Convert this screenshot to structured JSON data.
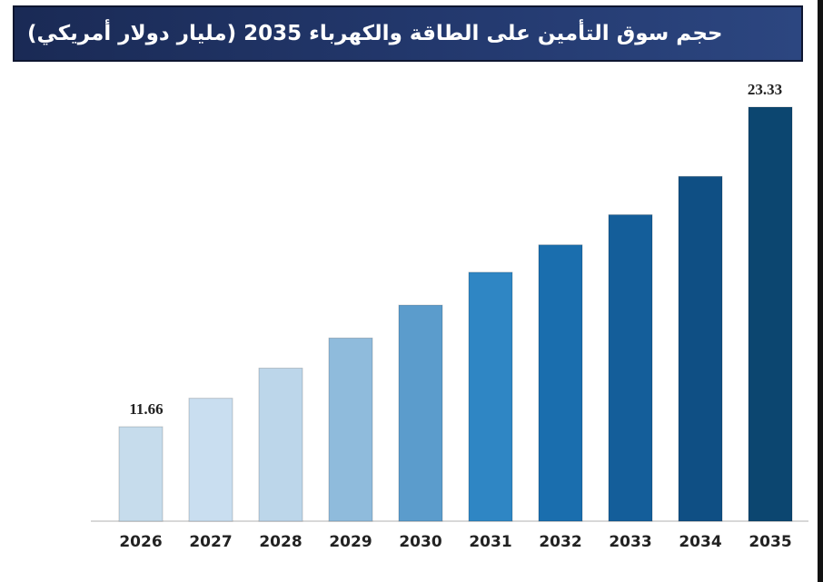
{
  "chart_data": {
    "type": "bar",
    "title": "حجم سوق التأمين على الطاقة والكهرباء 2035 (مليار دولار أمريكي)",
    "categories": [
      "2026",
      "2027",
      "2028",
      "2029",
      "2030",
      "2031",
      "2032",
      "2033",
      "2034",
      "2035"
    ],
    "values": [
      11.66,
      12.7,
      13.8,
      14.9,
      16.1,
      17.3,
      18.3,
      19.4,
      20.8,
      23.33
    ],
    "data_labels": [
      "11.66",
      "",
      "",
      "",
      "",
      "",
      "",
      "",
      "",
      "23.33"
    ],
    "colors": [
      "#c6dcec",
      "#c9def0",
      "#bcd6ea",
      "#8fbbdc",
      "#5b9ccc",
      "#2f86c4",
      "#1a6eae",
      "#145e9a",
      "#0f4f84",
      "#0c4670"
    ],
    "grid": false,
    "legend": "none"
  }
}
